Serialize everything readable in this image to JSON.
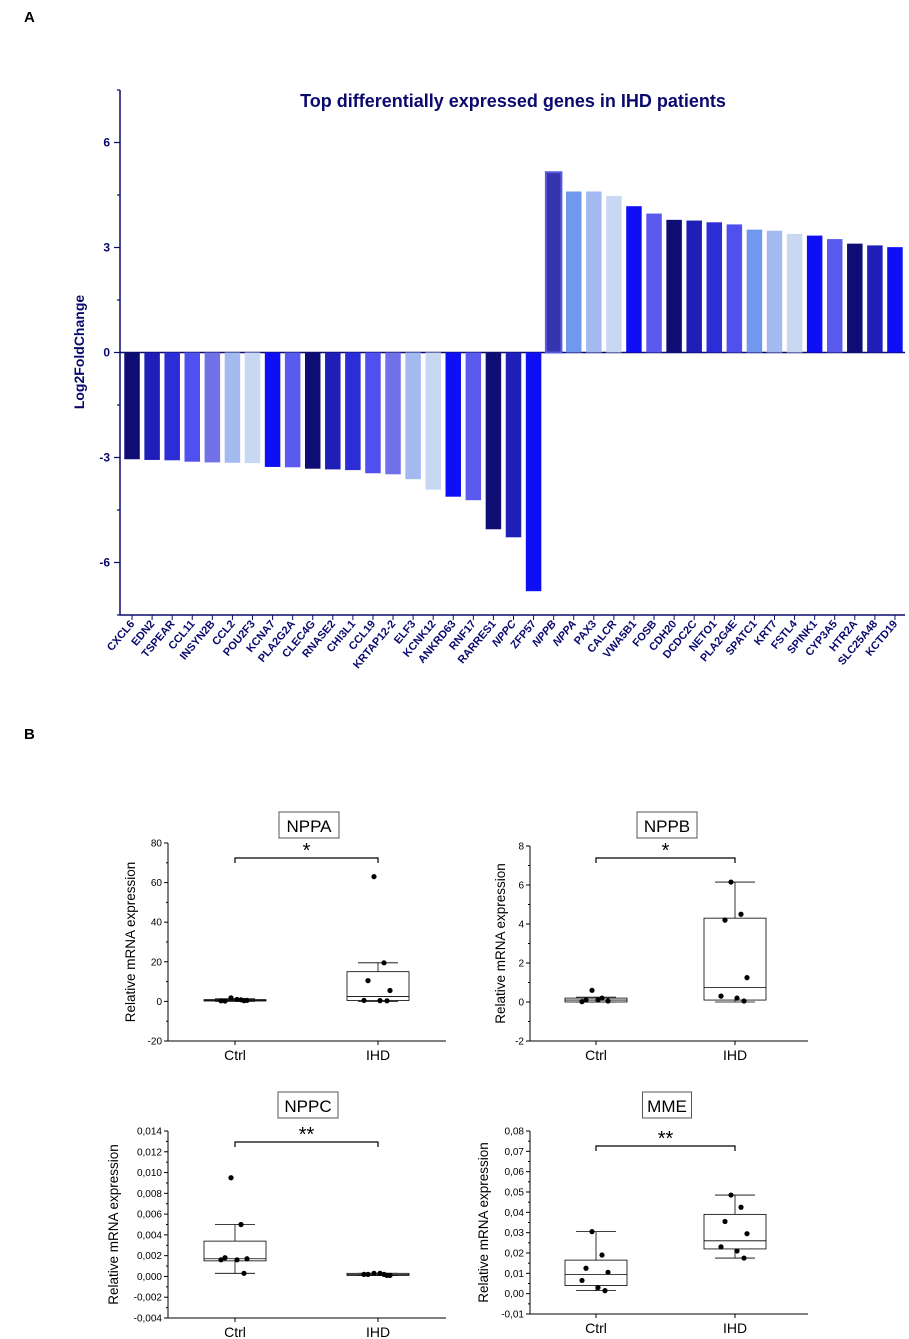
{
  "panel_a_label": "A",
  "panel_b_label": "B",
  "chart_data": [
    {
      "type": "bar",
      "title": "Top differentially expressed genes in IHD patients",
      "xlabel": "",
      "ylabel": "Log2FoldChange",
      "ylim": [
        -7.5,
        7.5
      ],
      "yticks": [
        -6,
        -3,
        0,
        3,
        6
      ],
      "ytick_labels": [
        "-6",
        "-3",
        "0",
        "3",
        "6"
      ],
      "text_color": "#0a0a6e",
      "categories": [
        "CXCL6",
        "EDN2",
        "TSPEAR",
        "CCL11",
        "INSYN2B",
        "CCL2",
        "POU2F3",
        "KCNA7",
        "PLA2G2A",
        "CLEC4G",
        "RNASE2",
        "CHI3L1",
        "CCL19",
        "KRTAP12-2",
        "ELF3",
        "KCNK12",
        "ANKRD63",
        "RNF17",
        "RARRES1",
        "NPPC",
        "ZFP57",
        "NPPB",
        "NPPA",
        "PAX3",
        "CALCR",
        "VWA5B1",
        "FOSB",
        "CDH20",
        "DCDC2C",
        "NETO1",
        "PLA2G4E",
        "SPATC1",
        "KRT7",
        "FSTL4",
        "SPINK1",
        "CYP3A5",
        "HTR2A",
        "SLC25A48",
        "KCTD19"
      ],
      "values": [
        -3.05,
        -3.07,
        -3.08,
        -3.12,
        -3.14,
        -3.15,
        -3.16,
        -3.27,
        -3.28,
        -3.32,
        -3.34,
        -3.36,
        -3.45,
        -3.48,
        -3.62,
        -3.92,
        -4.12,
        -4.22,
        -5.05,
        -5.28,
        -6.82,
        5.15,
        4.6,
        4.6,
        4.47,
        4.18,
        3.97,
        3.79,
        3.77,
        3.72,
        3.66,
        3.51,
        3.48,
        3.39,
        3.34,
        3.24,
        3.11,
        3.06,
        3.01
      ],
      "colors": [
        "#0d0d73",
        "#1f1fb8",
        "#2d2dd8",
        "#5050ee",
        "#7272e8",
        "#a3b9ef",
        "#c8d7f2",
        "#0f0ff5",
        "#5a5aee",
        "#0d0d73",
        "#1f1fb8",
        "#2d2dd8",
        "#5050ee",
        "#7272e8",
        "#a3b9ef",
        "#c8d7f2",
        "#0f0ff5",
        "#5a5aee",
        "#0d0d73",
        "#1f1fb8",
        "#0f0ff5",
        "#3535b0",
        "#7098ee",
        "#a3b9ef",
        "#c8d7f2",
        "#0f0ff5",
        "#5a5aee",
        "#0d0d73",
        "#1f1fb8",
        "#2d2dd8",
        "#5050ee",
        "#7098ee",
        "#a3b9ef",
        "#c8d7f2",
        "#0f0ff5",
        "#5a5aee",
        "#0d0d73",
        "#1f1fb8",
        "#0f0ff5"
      ],
      "highlight_category": "NPPB"
    },
    {
      "type": "box",
      "title": "NPPA",
      "ylabel": "Relative mRNA expression",
      "categories": [
        "Ctrl",
        "IHD"
      ],
      "ylim": [
        -20,
        80
      ],
      "yticks": [
        -20,
        0,
        20,
        40,
        60,
        80
      ],
      "ytick_labels": [
        "-20",
        "0",
        "20",
        "40",
        "60",
        "80"
      ],
      "significance": "*",
      "groups": [
        {
          "name": "Ctrl",
          "q1": 0.2,
          "median": 0.6,
          "q3": 0.9,
          "whisker_low": 0,
          "whisker_high": 1.3,
          "points": [
            1.8,
            0.8,
            0.2,
            0.5,
            0.3,
            1.0,
            0.4
          ]
        },
        {
          "name": "IHD",
          "q1": 0.5,
          "median": 2.5,
          "q3": 15,
          "whisker_low": 0,
          "whisker_high": 19.5,
          "points": [
            63,
            19.5,
            10.5,
            5.5,
            0.5,
            0.4,
            0.3
          ]
        }
      ]
    },
    {
      "type": "box",
      "title": "NPPB",
      "ylabel": "Relative mRNA expression",
      "categories": [
        "Ctrl",
        "IHD"
      ],
      "ylim": [
        -2,
        8
      ],
      "yticks": [
        -2,
        0,
        2,
        4,
        6,
        8
      ],
      "ytick_labels": [
        "-2",
        "0",
        "2",
        "4",
        "6",
        "8"
      ],
      "significance": "*",
      "groups": [
        {
          "name": "Ctrl",
          "q1": 0,
          "median": 0.1,
          "q3": 0.2,
          "whisker_low": 0,
          "whisker_high": 0.25,
          "points": [
            0.6,
            0.2,
            0.1,
            0.05,
            0.02,
            0.1
          ]
        },
        {
          "name": "IHD",
          "q1": 0.1,
          "median": 0.75,
          "q3": 4.3,
          "whisker_low": 0,
          "whisker_high": 6.15,
          "points": [
            6.15,
            4.5,
            4.2,
            1.25,
            0.3,
            0.2,
            0.05
          ]
        }
      ]
    },
    {
      "type": "box",
      "title": "NPPC",
      "ylabel": "Relative mRNA expression",
      "categories": [
        "Ctrl",
        "IHD"
      ],
      "ylim": [
        -0.004,
        0.014
      ],
      "yticks": [
        -0.004,
        -0.002,
        0,
        0.002,
        0.004,
        0.006,
        0.008,
        0.01,
        0.012,
        0.014
      ],
      "ytick_labels": [
        "-0,004",
        "-0,002",
        "0,000",
        "0,002",
        "0,004",
        "0,006",
        "0,008",
        "0,010",
        "0,012",
        "0,014"
      ],
      "significance": "**",
      "groups": [
        {
          "name": "Ctrl",
          "q1": 0.0015,
          "median": 0.0017,
          "q3": 0.0034,
          "whisker_low": 0.0003,
          "whisker_high": 0.005,
          "points": [
            0.0095,
            0.005,
            0.0018,
            0.0017,
            0.0016,
            0.0016,
            0.0003
          ]
        },
        {
          "name": "IHD",
          "q1": 0.0001,
          "median": 0.0002,
          "q3": 0.0003,
          "whisker_low": 0.0001,
          "whisker_high": 0.0003,
          "points": [
            0.0003,
            0.0002,
            0.0002,
            0.0001,
            0.0002,
            0.0003,
            0.0001
          ]
        }
      ]
    },
    {
      "type": "box",
      "title": "MME",
      "ylabel": "Relative mRNA expression",
      "categories": [
        "Ctrl",
        "IHD"
      ],
      "ylim": [
        -0.01,
        0.08
      ],
      "yticks": [
        -0.01,
        0,
        0.01,
        0.02,
        0.03,
        0.04,
        0.05,
        0.06,
        0.07,
        0.08
      ],
      "ytick_labels": [
        "-0,01",
        "0,00",
        "0,01",
        "0,02",
        "0,03",
        "0,04",
        "0,05",
        "0,06",
        "0,07",
        "0,08"
      ],
      "significance": "**",
      "groups": [
        {
          "name": "Ctrl",
          "q1": 0.004,
          "median": 0.0095,
          "q3": 0.0165,
          "whisker_low": 0.0015,
          "whisker_high": 0.0305,
          "points": [
            0.0305,
            0.019,
            0.0125,
            0.0105,
            0.0065,
            0.003,
            0.0015
          ]
        },
        {
          "name": "IHD",
          "q1": 0.022,
          "median": 0.026,
          "q3": 0.039,
          "whisker_low": 0.0175,
          "whisker_high": 0.0485,
          "points": [
            0.0485,
            0.0425,
            0.0355,
            0.0295,
            0.023,
            0.021,
            0.0175
          ]
        }
      ]
    }
  ]
}
